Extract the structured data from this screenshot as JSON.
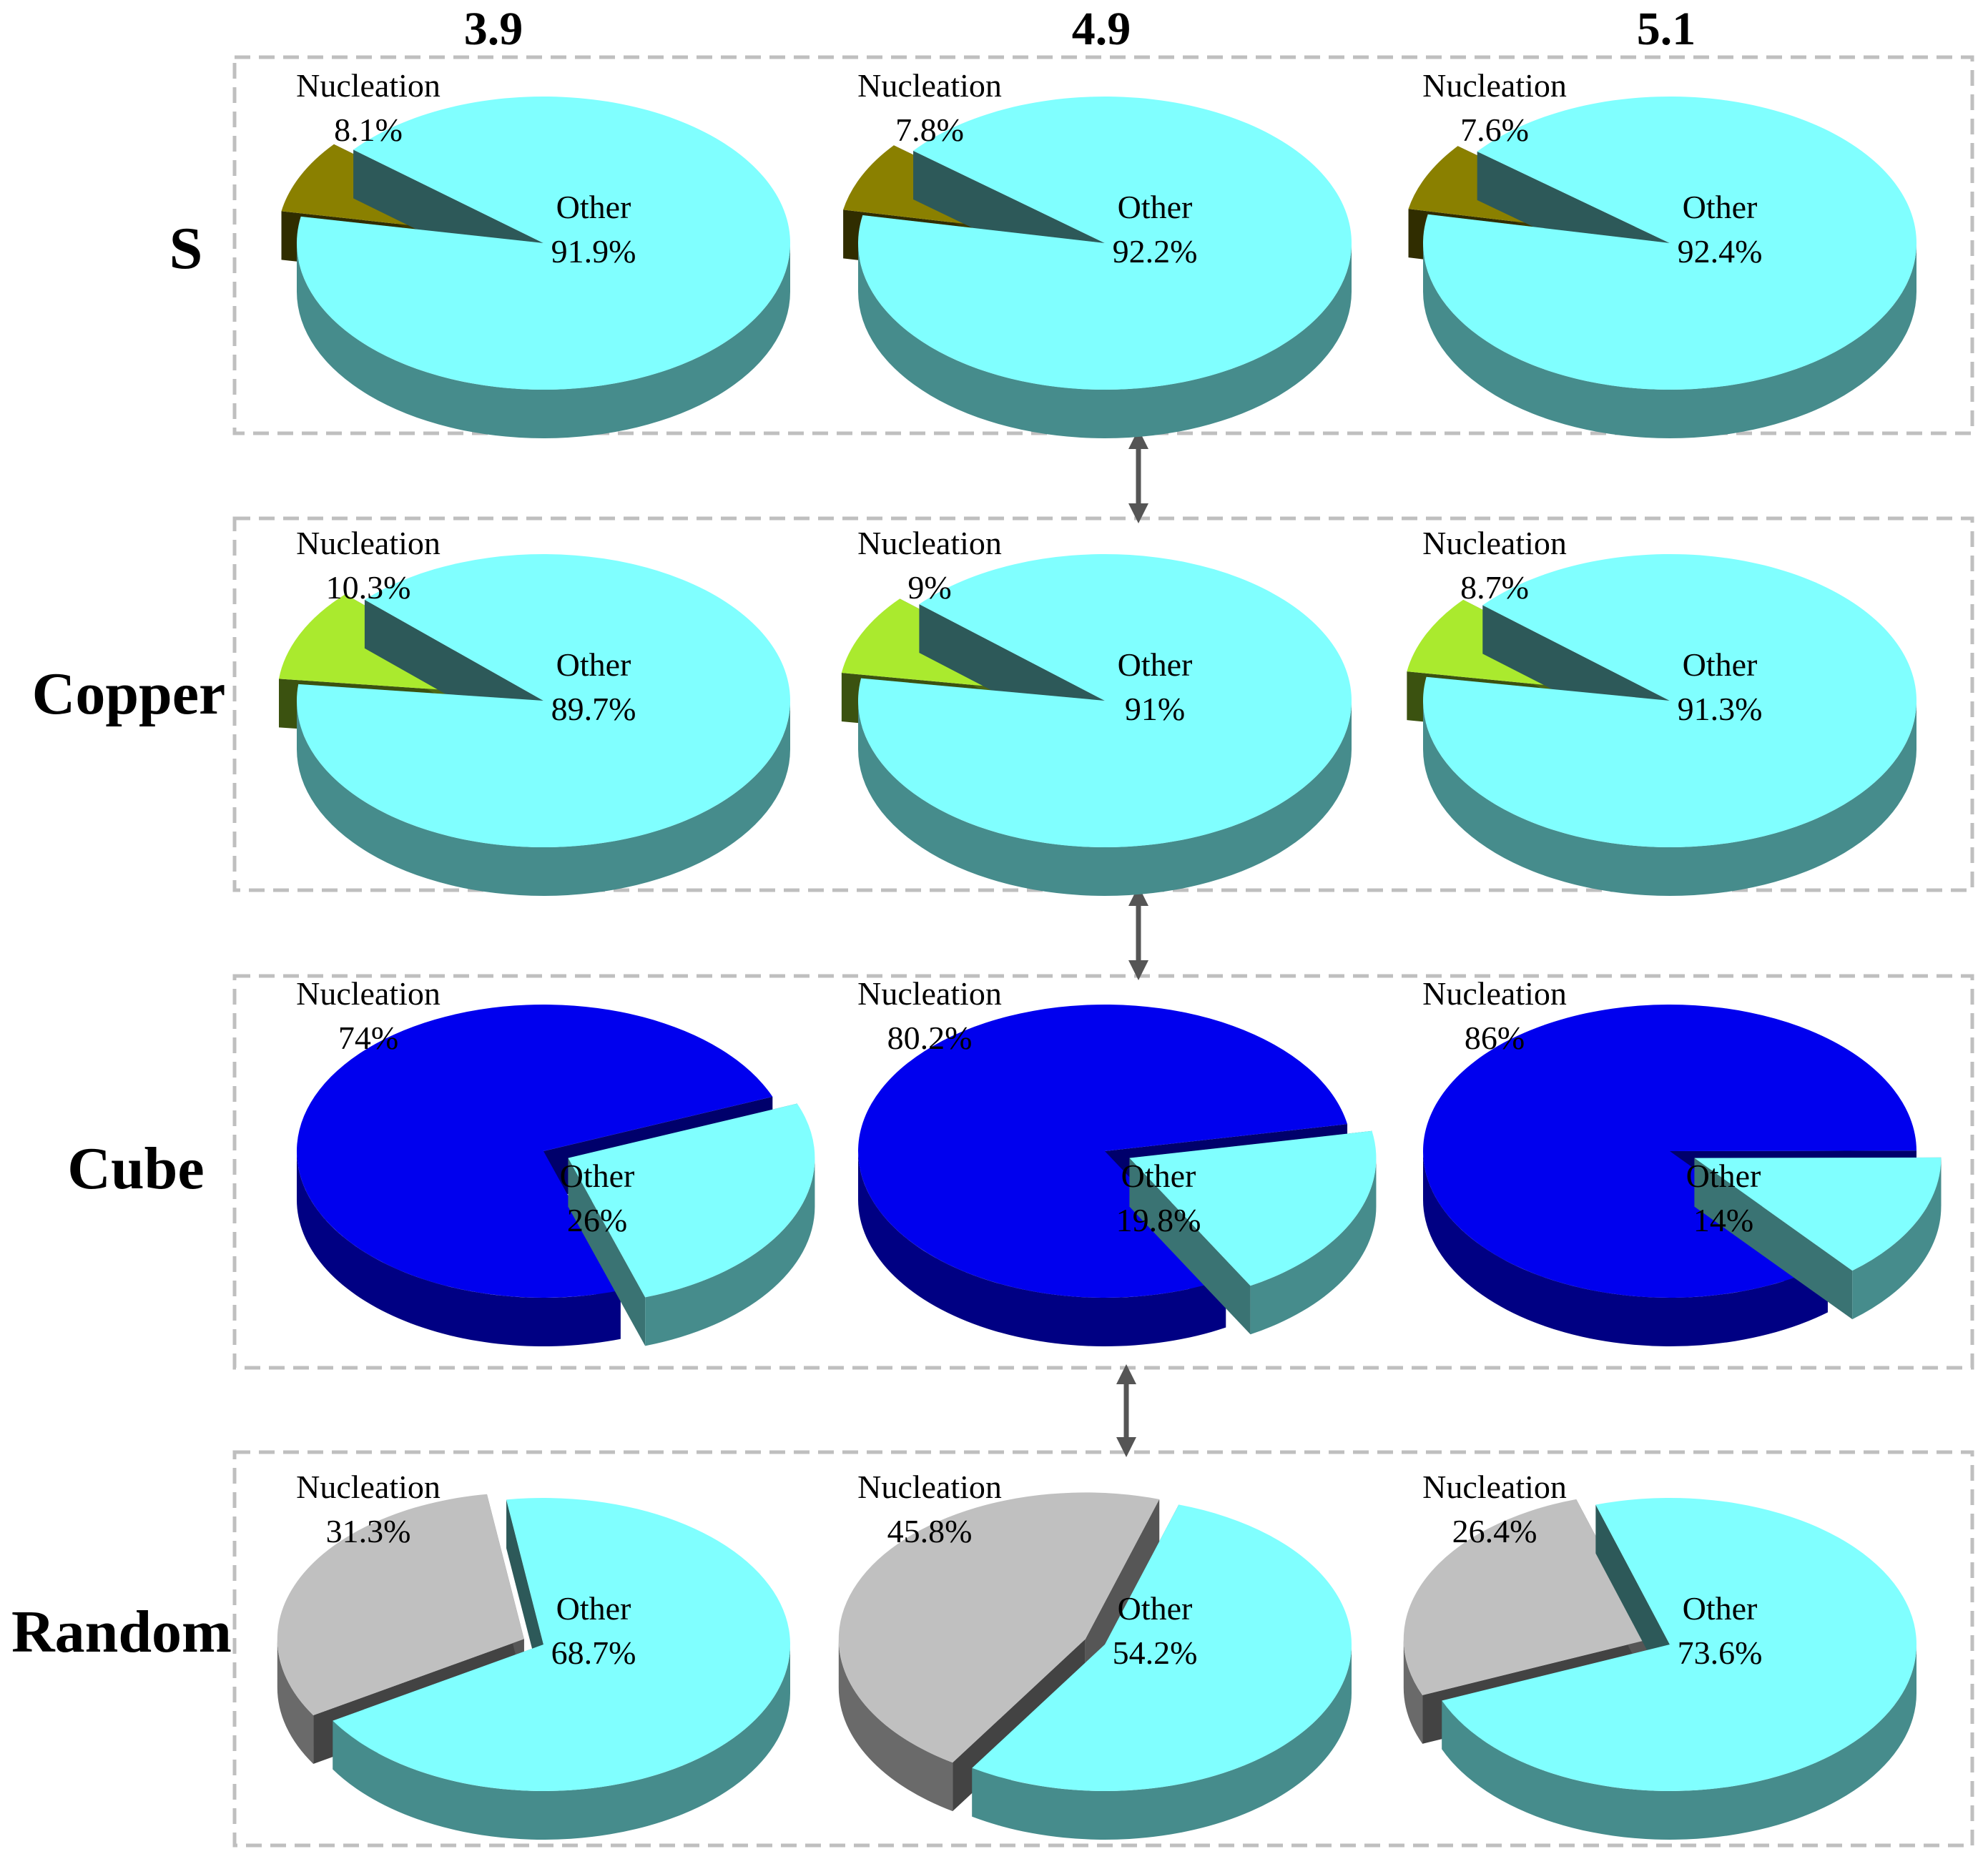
{
  "chart_data": {
    "type": "pie",
    "title": "",
    "column_labels": [
      "3.9",
      "4.9",
      "5.1"
    ],
    "rows": [
      {
        "name": "S",
        "colors": {
          "nucleation": "#8a8000",
          "other": "#80ffff"
        },
        "pies": [
          {
            "column": "3.9",
            "slices": [
              {
                "label": "Nucleation",
                "value": 8.1,
                "text": "8.1%"
              },
              {
                "label": "Other",
                "value": 91.9,
                "text": "91.9%"
              }
            ]
          },
          {
            "column": "4.9",
            "slices": [
              {
                "label": "Nucleation",
                "value": 7.8,
                "text": "7.8%"
              },
              {
                "label": "Other",
                "value": 92.2,
                "text": "92.2%"
              }
            ]
          },
          {
            "column": "5.1",
            "slices": [
              {
                "label": "Nucleation",
                "value": 7.6,
                "text": "7.6%"
              },
              {
                "label": "Other",
                "value": 92.4,
                "text": "92.4%"
              }
            ]
          }
        ]
      },
      {
        "name": "Copper",
        "colors": {
          "nucleation": "#aaea2e",
          "other": "#80ffff"
        },
        "pies": [
          {
            "column": "3.9",
            "slices": [
              {
                "label": "Nucleation",
                "value": 10.3,
                "text": "10.3%"
              },
              {
                "label": "Other",
                "value": 89.7,
                "text": "89.7%"
              }
            ]
          },
          {
            "column": "4.9",
            "slices": [
              {
                "label": "Nucleation",
                "value": 9,
                "text": "9%"
              },
              {
                "label": "Other",
                "value": 91,
                "text": "91%"
              }
            ]
          },
          {
            "column": "5.1",
            "slices": [
              {
                "label": "Nucleation",
                "value": 8.7,
                "text": "8.7%"
              },
              {
                "label": "Other",
                "value": 91.3,
                "text": "91.3%"
              }
            ]
          }
        ]
      },
      {
        "name": "Cube",
        "colors": {
          "nucleation": "#0000ee",
          "other": "#80ffff"
        },
        "pies": [
          {
            "column": "3.9",
            "slices": [
              {
                "label": "Nucleation",
                "value": 74,
                "text": "74%"
              },
              {
                "label": "Other",
                "value": 26,
                "text": "26%"
              }
            ]
          },
          {
            "column": "4.9",
            "slices": [
              {
                "label": "Nucleation",
                "value": 80.2,
                "text": "80.2%"
              },
              {
                "label": "Other",
                "value": 19.8,
                "text": "19.8%"
              }
            ]
          },
          {
            "column": "5.1",
            "slices": [
              {
                "label": "Nucleation",
                "value": 86,
                "text": "86%"
              },
              {
                "label": "Other",
                "value": 14,
                "text": "14%"
              }
            ]
          }
        ]
      },
      {
        "name": "Random",
        "colors": {
          "nucleation": "#c0c0c0",
          "other": "#80ffff"
        },
        "pies": [
          {
            "column": "3.9",
            "slices": [
              {
                "label": "Nucleation",
                "value": 31.3,
                "text": "31.3%"
              },
              {
                "label": "Other",
                "value": 68.7,
                "text": "68.7%"
              }
            ]
          },
          {
            "column": "4.9",
            "slices": [
              {
                "label": "Nucleation",
                "value": 45.8,
                "text": "45.8%"
              },
              {
                "label": "Other",
                "value": 54.2,
                "text": "54.2%"
              }
            ]
          },
          {
            "column": "5.1",
            "slices": [
              {
                "label": "Nucleation",
                "value": 26.4,
                "text": "26.4%"
              },
              {
                "label": "Other",
                "value": 73.6,
                "text": "73.6%"
              }
            ]
          }
        ]
      }
    ],
    "connectors": "double-headed arrows between adjacent row panels"
  }
}
